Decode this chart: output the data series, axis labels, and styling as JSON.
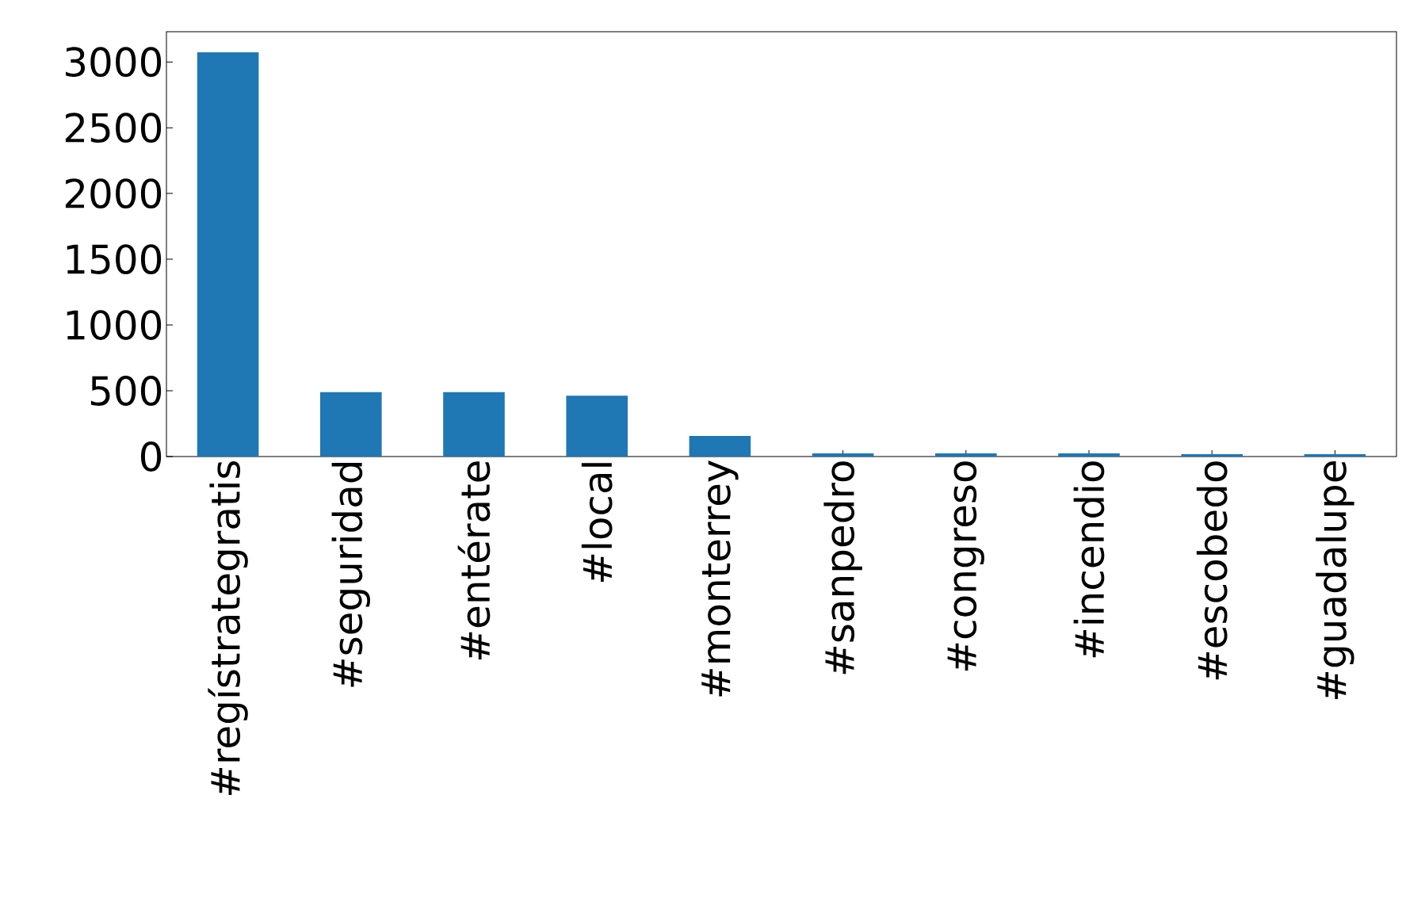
{
  "chart_data": {
    "type": "bar",
    "categories": [
      "#regístrategratis",
      "#seguridad",
      "#entérate",
      "#local",
      "#monterrey",
      "#sanpedro",
      "#congreso",
      "#incendio",
      "#escobedo",
      "#guadalupe"
    ],
    "values": [
      3074,
      490,
      490,
      463,
      156,
      24,
      24,
      24,
      18,
      18
    ],
    "color": "#1f77b4",
    "ylim": [
      0,
      3230
    ],
    "yticks": [
      0,
      500,
      1000,
      1500,
      2000,
      2500,
      3000
    ],
    "grid": false
  }
}
